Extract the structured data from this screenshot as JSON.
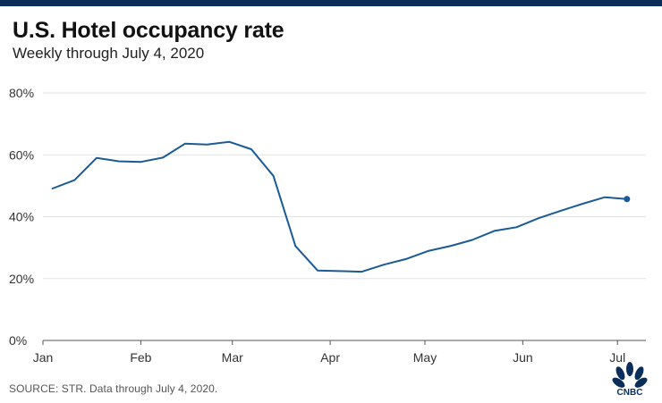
{
  "header": {
    "title": "U.S. Hotel occupancy rate",
    "subtitle": "Weekly through July 4, 2020"
  },
  "footer": {
    "source": "SOURCE: STR. Data through July 4, 2020."
  },
  "branding": {
    "logo_text": "CNBC",
    "logo_icon": "peacock-icon"
  },
  "colors": {
    "top_bar": "#0a2d5a",
    "line": "#1a5a96",
    "grid": "#e2e2e2",
    "axis_text": "#333333"
  },
  "chart_data": {
    "type": "line",
    "title": "U.S. Hotel occupancy rate",
    "subtitle": "Weekly through July 4, 2020",
    "xlabel": "",
    "ylabel": "",
    "y_unit": "%",
    "ylim": [
      0,
      80
    ],
    "yticks": [
      0,
      20,
      40,
      60,
      80
    ],
    "ytick_labels": [
      "0%",
      "20%",
      "40%",
      "60%",
      "80%"
    ],
    "xlim": [
      "2020-01-01",
      "2020-07-10"
    ],
    "xticks": [
      "2020-01-01",
      "2020-02-01",
      "2020-03-01",
      "2020-04-01",
      "2020-05-01",
      "2020-06-01",
      "2020-07-01"
    ],
    "xtick_labels": [
      "Jan",
      "Feb",
      "Mar",
      "Apr",
      "May",
      "Jun",
      "Jul"
    ],
    "grid": true,
    "legend": "none",
    "end_marker": true,
    "series": [
      {
        "x": [
          "2020-01-04",
          "2020-01-11",
          "2020-01-18",
          "2020-01-25",
          "2020-02-01",
          "2020-02-08",
          "2020-02-15",
          "2020-02-22",
          "2020-02-29",
          "2020-03-07",
          "2020-03-14",
          "2020-03-21",
          "2020-03-28",
          "2020-04-04",
          "2020-04-11",
          "2020-04-18",
          "2020-04-25",
          "2020-05-02",
          "2020-05-09",
          "2020-05-16",
          "2020-05-23",
          "2020-05-30",
          "2020-06-06",
          "2020-06-13",
          "2020-06-20",
          "2020-06-27",
          "2020-07-04"
        ],
        "values": [
          49.1,
          51.8,
          59.0,
          57.9,
          57.7,
          59.1,
          63.6,
          63.3,
          64.2,
          61.8,
          53.2,
          30.5,
          22.6,
          22.4,
          22.2,
          24.5,
          26.3,
          28.9,
          30.5,
          32.5,
          35.4,
          36.6,
          39.5,
          41.9,
          44.2,
          46.3,
          45.7
        ]
      }
    ]
  }
}
